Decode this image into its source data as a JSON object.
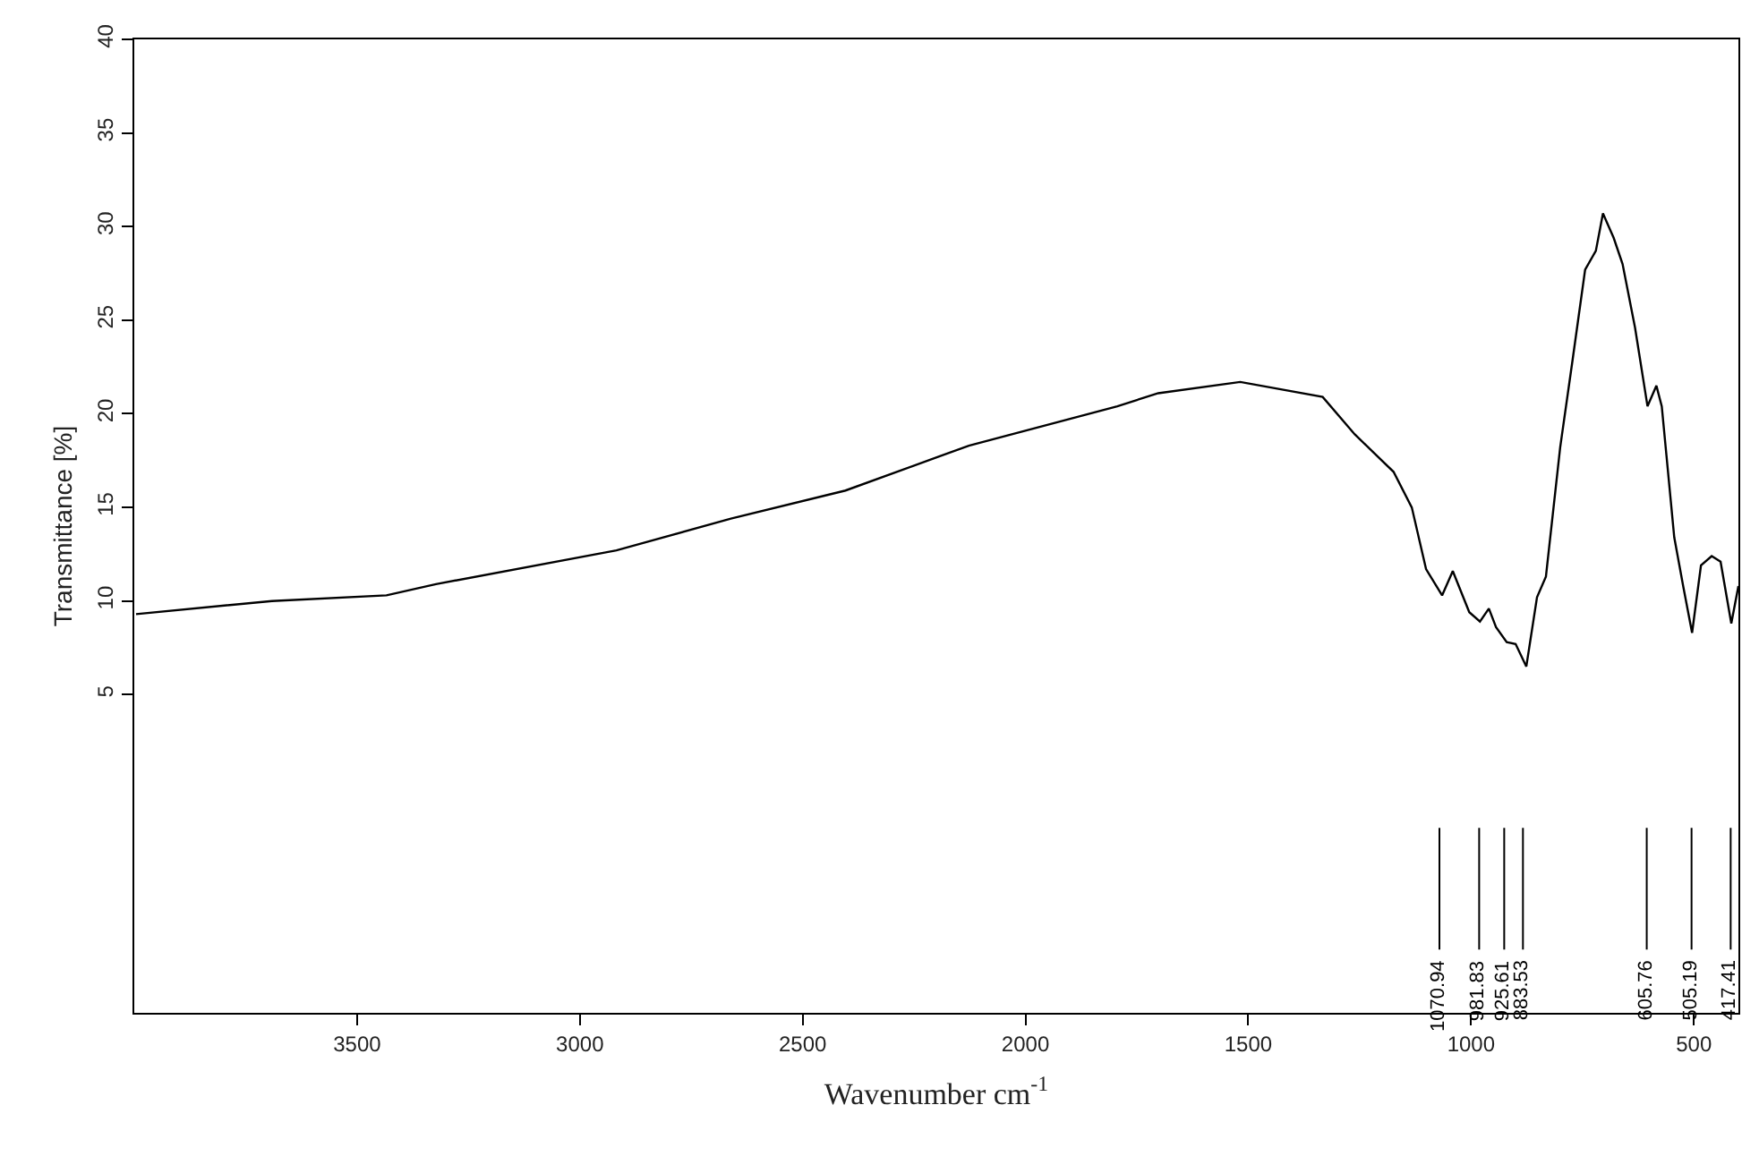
{
  "chart_data": {
    "type": "line",
    "xlabel": "Wavenumber cm$^{-1}$",
    "ylabel": "Transmittance [%]",
    "xlim": [
      4000,
      400
    ],
    "ylim": [
      -12,
      40
    ],
    "xticks": [
      3500,
      3000,
      2500,
      2000,
      1500,
      1000,
      500
    ],
    "yticks": [
      5,
      10,
      15,
      20,
      25,
      30,
      35,
      40
    ],
    "marker": "none",
    "line_style": "solid",
    "series": [
      {
        "color": "#000000",
        "x": [
          3996,
          3691,
          3434,
          3323,
          2918,
          2661,
          2404,
          2127,
          1794,
          1702,
          1518,
          1333,
          1261,
          1174,
          1133,
          1101,
          1065,
          1041,
          1004,
          980,
          960,
          944,
          920,
          900,
          876,
          852,
          832,
          800,
          772,
          744,
          720,
          704,
          680,
          660,
          632,
          604,
          584,
          572,
          544,
          524,
          504,
          484,
          460,
          440,
          416,
          400
        ],
        "values": [
          9.3,
          10.0,
          10.3,
          10.9,
          12.7,
          14.4,
          15.9,
          18.3,
          20.4,
          21.1,
          21.7,
          20.9,
          18.9,
          16.9,
          15.0,
          11.7,
          10.3,
          11.6,
          9.4,
          8.9,
          9.6,
          8.6,
          7.8,
          7.7,
          6.5,
          10.2,
          11.3,
          18.2,
          22.9,
          27.7,
          28.7,
          30.7,
          29.4,
          28.0,
          24.6,
          20.4,
          21.5,
          20.4,
          13.4,
          10.8,
          8.3,
          11.9,
          12.4,
          12.1,
          8.8,
          10.8
        ]
      }
    ],
    "ref_lines": [
      {
        "axis": "x",
        "value": 1070.94,
        "label": "1070.94"
      },
      {
        "axis": "x",
        "value": 981.83,
        "label": "981.83"
      },
      {
        "axis": "x",
        "value": 925.61,
        "label": "925.61"
      },
      {
        "axis": "x",
        "value": 883.53,
        "label": "883.53"
      },
      {
        "axis": "x",
        "value": 605.76,
        "label": "605.76"
      },
      {
        "axis": "x",
        "value": 505.19,
        "label": "505.19"
      },
      {
        "axis": "x",
        "value": 417.41,
        "label": "417.41"
      }
    ]
  }
}
